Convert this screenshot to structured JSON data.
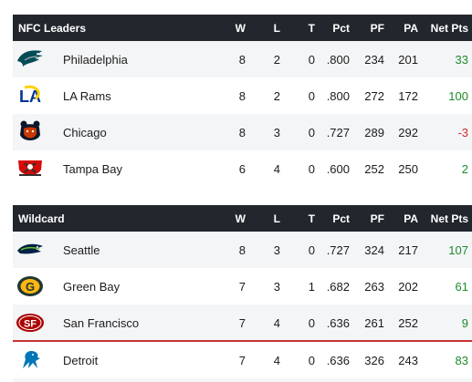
{
  "nfc_leaders": {
    "title": "NFC Leaders",
    "headers": {
      "w": "W",
      "l": "L",
      "t": "T",
      "pct": "Pct",
      "pf": "PF",
      "pa": "PA",
      "net": "Net Pts"
    },
    "rows": [
      {
        "team": "Philadelphia",
        "logo": "eagles-logo",
        "w": "8",
        "l": "2",
        "t": "0",
        "pct": ".800",
        "pf": "234",
        "pa": "201",
        "net": "33"
      },
      {
        "team": "LA Rams",
        "logo": "rams-logo",
        "w": "8",
        "l": "2",
        "t": "0",
        "pct": ".800",
        "pf": "272",
        "pa": "172",
        "net": "100"
      },
      {
        "team": "Chicago",
        "logo": "bears-logo",
        "w": "8",
        "l": "3",
        "t": "0",
        "pct": ".727",
        "pf": "289",
        "pa": "292",
        "net": "-3"
      },
      {
        "team": "Tampa Bay",
        "logo": "buccaneers-logo",
        "w": "6",
        "l": "4",
        "t": "0",
        "pct": ".600",
        "pf": "252",
        "pa": "250",
        "net": "2"
      }
    ]
  },
  "wildcard": {
    "title": "Wildcard",
    "headers": {
      "w": "W",
      "l": "L",
      "t": "T",
      "pct": "Pct",
      "pf": "PF",
      "pa": "PA",
      "net": "Net Pts"
    },
    "rows": [
      {
        "team": "Seattle",
        "logo": "seahawks-logo",
        "w": "8",
        "l": "3",
        "t": "0",
        "pct": ".727",
        "pf": "324",
        "pa": "217",
        "net": "107"
      },
      {
        "team": "Green Bay",
        "logo": "packers-logo",
        "w": "7",
        "l": "3",
        "t": "1",
        "pct": ".682",
        "pf": "263",
        "pa": "202",
        "net": "61"
      },
      {
        "team": "San Francisco",
        "logo": "49ers-logo",
        "w": "7",
        "l": "4",
        "t": "0",
        "pct": ".636",
        "pf": "261",
        "pa": "252",
        "net": "9"
      },
      {
        "team": "Detroit",
        "logo": "lions-logo",
        "w": "7",
        "l": "4",
        "t": "0",
        "pct": ".636",
        "pf": "326",
        "pa": "243",
        "net": "83"
      }
    ]
  },
  "colors": {
    "header_bg": "#22272d",
    "positive": "#1b8a2a",
    "negative": "#d42a2a",
    "cutline": "#c8323a",
    "row_alt": "#f4f5f7"
  }
}
